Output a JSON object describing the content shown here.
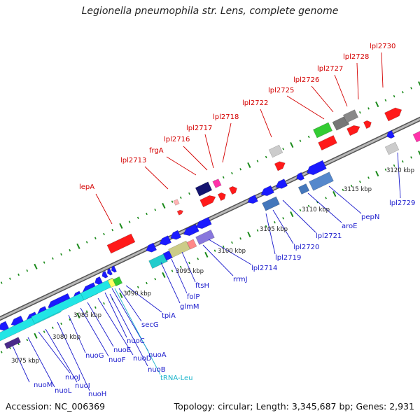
{
  "title": "Legionella pneumophila str. Lens, complete genome",
  "accession": "Accession: NC_006369",
  "summary": "Topology: circular; Length: 3,345,687 bp; Genes: 2,931",
  "colors": {
    "upper_label": "#d40000",
    "lower_label": "#1a1acc",
    "trna_label": "#1fb6cc",
    "backbone": "#8a8a8a",
    "tick": "#1a8a1a"
  },
  "kbp_labels": [
    "3075 kbp",
    "3080 kbp",
    "3085 kbp",
    "3090 kbp",
    "3095 kbp",
    "3100 kbp",
    "3105 kbp",
    "3110 kbp",
    "3115 kbp",
    "3120 kbp"
  ],
  "upper_labels": [
    "lepA",
    "lpl2713",
    "frgA",
    "lpl2716",
    "lpl2717",
    "lpl2718",
    "lpl2722",
    "lpl2725",
    "lpl2726",
    "lpl2727",
    "lpl2728",
    "lpl2730"
  ],
  "lower_labels": [
    "nuoM",
    "nuoL",
    "nuoJ",
    "nuoI",
    "nuoH",
    "nuoG",
    "nuoF",
    "nuoE",
    "nuoD",
    "nuoC",
    "nuoB",
    "nuoA",
    "tRNA-Leu",
    "secG",
    "tpiA",
    "glmM",
    "folP",
    "ftsH",
    "rrmJ",
    "lpl2714",
    "lpl2719",
    "lpl2720",
    "lpl2721",
    "aroE",
    "pepN",
    "lpl2729"
  ]
}
